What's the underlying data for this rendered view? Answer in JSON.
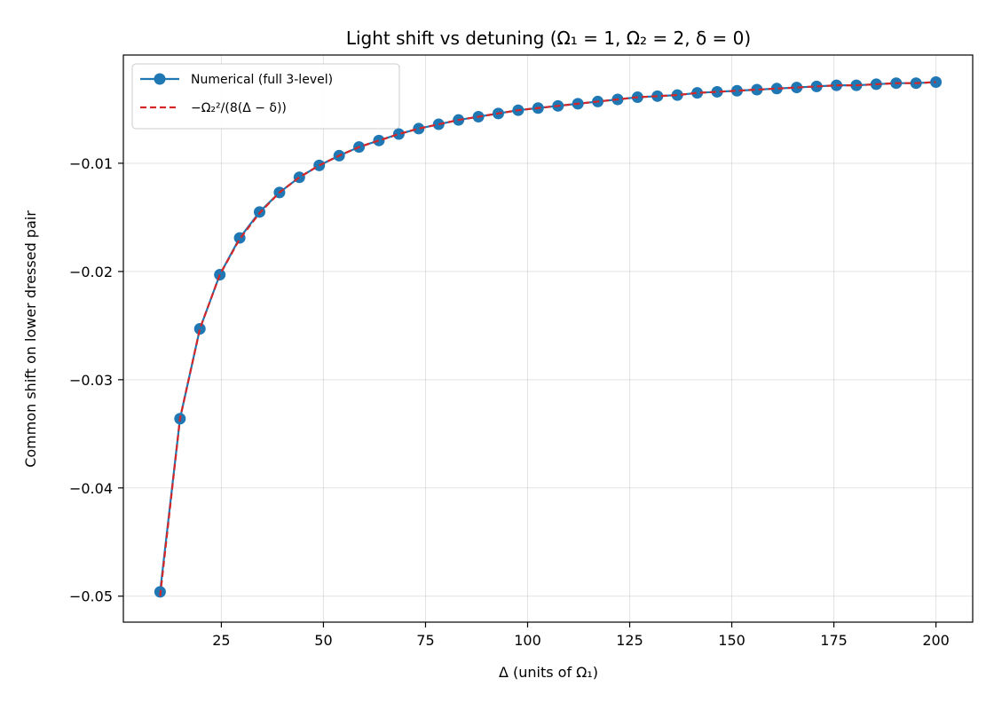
{
  "chart_data": {
    "type": "line",
    "title": "Light shift vs detuning (Ω₁ = 1,  Ω₂ = 2,  δ = 0)",
    "xlabel": "Δ  (units of Ω₁)",
    "ylabel": "Common shift on lower dressed pair",
    "xlim": [
      1,
      209
    ],
    "ylim": [
      -0.0524,
      0.0
    ],
    "xticks": [
      25,
      50,
      75,
      100,
      125,
      150,
      175,
      200
    ],
    "xtick_labels": [
      "25",
      "50",
      "75",
      "100",
      "125",
      "150",
      "175",
      "200"
    ],
    "yticks": [
      -0.05,
      -0.04,
      -0.03,
      -0.02,
      -0.01
    ],
    "ytick_labels": [
      "−0.05",
      "−0.04",
      "−0.03",
      "−0.02",
      "−0.01"
    ],
    "grid": true,
    "legend_position": "top-left",
    "x": [
      10,
      14.87,
      19.74,
      24.62,
      29.49,
      34.36,
      39.23,
      44.1,
      48.97,
      53.85,
      58.72,
      63.59,
      68.46,
      73.33,
      78.21,
      83.08,
      87.95,
      92.82,
      97.69,
      102.56,
      107.44,
      112.31,
      117.18,
      122.05,
      126.92,
      131.79,
      136.67,
      141.54,
      146.41,
      151.28,
      156.15,
      161.03,
      165.9,
      170.77,
      175.64,
      180.51,
      185.38,
      190.26,
      195.13,
      200
    ],
    "series": [
      {
        "name": "Numerical (full 3-level)",
        "color": "#1f77b4",
        "style": "solid-with-markers",
        "values": [
          -0.0496,
          -0.0336,
          -0.0253,
          -0.0203,
          -0.0169,
          -0.0145,
          -0.0127,
          -0.0113,
          -0.0102,
          -0.0093,
          -0.0085,
          -0.0079,
          -0.0073,
          -0.0068,
          -0.0064,
          -0.006,
          -0.0057,
          -0.0054,
          -0.0051,
          -0.0049,
          -0.0047,
          -0.0045,
          -0.0043,
          -0.0041,
          -0.0039,
          -0.0038,
          -0.0037,
          -0.0035,
          -0.0034,
          -0.0033,
          -0.0032,
          -0.0031,
          -0.003,
          -0.0029,
          -0.0028,
          -0.0028,
          -0.0027,
          -0.0026,
          -0.0026,
          -0.0025
        ]
      },
      {
        "name": "−Ω₂²/(8(Δ − δ))",
        "color": "#d62728",
        "style": "dashed",
        "values": [
          -0.05,
          -0.0336,
          -0.0253,
          -0.0203,
          -0.017,
          -0.0146,
          -0.0127,
          -0.0113,
          -0.0102,
          -0.0093,
          -0.0085,
          -0.0079,
          -0.0073,
          -0.0068,
          -0.0064,
          -0.006,
          -0.0057,
          -0.0054,
          -0.0051,
          -0.0049,
          -0.0047,
          -0.0045,
          -0.0043,
          -0.0041,
          -0.0039,
          -0.0038,
          -0.0037,
          -0.0035,
          -0.0034,
          -0.0033,
          -0.0032,
          -0.0031,
          -0.003,
          -0.0029,
          -0.0028,
          -0.0028,
          -0.0027,
          -0.0026,
          -0.0026,
          -0.0025
        ]
      }
    ]
  }
}
